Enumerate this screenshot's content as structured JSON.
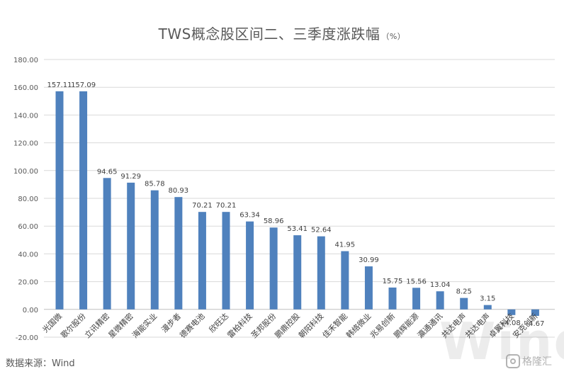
{
  "chart_data": {
    "type": "bar",
    "title": "TWS概念股区间二、三季度涨跌幅",
    "title_unit": "（%）",
    "source": "数据来源：Wind",
    "watermark": "Wind",
    "brand": "格隆汇",
    "bar_color": "#4f81bd",
    "ylim": [
      -20,
      180
    ],
    "y_ticks": [
      "-20.00",
      "0.00",
      "20.00",
      "40.00",
      "60.00",
      "80.00",
      "100.00",
      "120.00",
      "140.00",
      "160.00",
      "180.00"
    ],
    "categories": [
      "光国微",
      "歌尔股份",
      "立讯精密",
      "星微精密",
      "海能实业",
      "漫步者",
      "德赛电池",
      "欣旺达",
      "雷柏科技",
      "圣邦股份",
      "鹏鼎控股",
      "朝阳科技",
      "佳禾智能",
      "韩络微业",
      "兆易创新",
      "鹏辉能源",
      "瀛通通讯",
      "共达电声",
      "共达电声",
      "卓翼科技",
      "安克创新"
    ],
    "values": [
      157.11,
      157.09,
      94.65,
      91.29,
      85.78,
      80.93,
      70.21,
      70.21,
      63.34,
      58.96,
      53.41,
      52.64,
      41.95,
      30.99,
      15.75,
      15.56,
      13.04,
      8.25,
      3.15,
      -4.08,
      -4.67
    ],
    "value_labels": [
      "157.11",
      "157.09",
      "94.65",
      "91.29",
      "85.78",
      "80.93",
      "70.21",
      "70.21",
      "63.34",
      "58.96",
      "53.41",
      "52.64",
      "41.95",
      "30.99",
      "15.75",
      "15.56",
      "13.04",
      "8.25",
      "3.15",
      "-4.08",
      "-4.67"
    ],
    "grid": true,
    "legend": "none"
  }
}
